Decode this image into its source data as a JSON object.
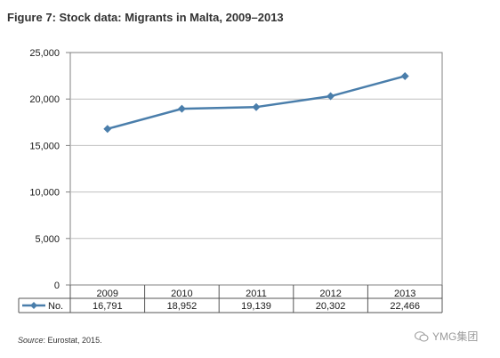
{
  "title": "Figure 7: Stock data: Migrants in Malta, 2009–2013",
  "source": {
    "label": "Source",
    "text": ": Eurostat, 2015."
  },
  "watermark": "YMG集团",
  "colors": {
    "series": "#4a7eab",
    "grid": "#bfbfbf",
    "axis": "#808080",
    "border": "#555555"
  },
  "chart_data": {
    "type": "line",
    "title": "Figure 7: Stock data: Migrants in Malta, 2009–2013",
    "categories": [
      "2009",
      "2010",
      "2011",
      "2012",
      "2013"
    ],
    "series": [
      {
        "name": "No.",
        "values": [
          16791,
          18952,
          19139,
          20302,
          22466
        ],
        "labels": [
          "16,791",
          "18,952",
          "19,139",
          "20,302",
          "22,466"
        ]
      }
    ],
    "ylim": [
      0,
      25000
    ],
    "yticks": [
      0,
      5000,
      10000,
      15000,
      20000,
      25000
    ],
    "ytick_labels": [
      "0",
      "5,000",
      "10,000",
      "15,000",
      "20,000",
      "25,000"
    ],
    "grid": true,
    "legend": "data-table",
    "xlabel": "",
    "ylabel": ""
  }
}
